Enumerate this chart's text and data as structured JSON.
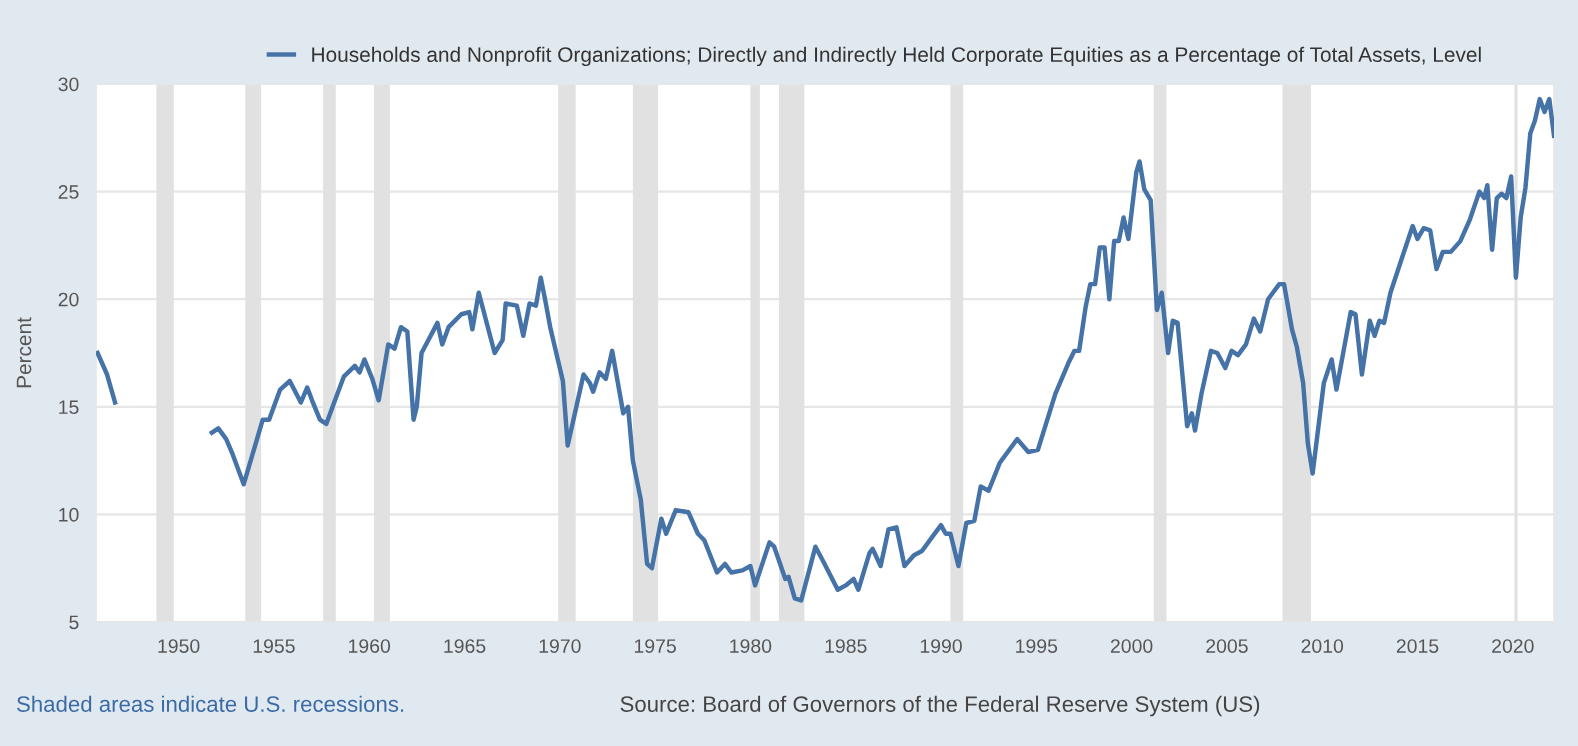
{
  "chart_data": {
    "type": "line",
    "ylabel": "Percent",
    "annotations": [
      "Shaded areas indicate U.S. recessions.",
      "Source: Board of Governors of the Federal Reserve System (US)"
    ],
    "xlim": [
      "1945-09",
      "2022-03"
    ],
    "ylim": [
      5,
      30
    ],
    "xticks": [
      "1950",
      "1955",
      "1960",
      "1965",
      "1970",
      "1975",
      "1980",
      "1985",
      "1990",
      "1995",
      "2000",
      "2005",
      "2010",
      "2015",
      "2020"
    ],
    "yticks": [
      5,
      10,
      15,
      20,
      25,
      30
    ],
    "grid": "y",
    "legend": "top left",
    "marker": "none",
    "line_style": "solid",
    "bands": [
      {
        "axis": "x",
        "from": "1948-11",
        "to": "1949-10",
        "color": "#e1e1e1"
      },
      {
        "axis": "x",
        "from": "1953-07",
        "to": "1954-05",
        "color": "#e1e1e1"
      },
      {
        "axis": "x",
        "from": "1957-08",
        "to": "1958-04",
        "color": "#e1e1e1"
      },
      {
        "axis": "x",
        "from": "1960-04",
        "to": "1961-02",
        "color": "#e1e1e1"
      },
      {
        "axis": "x",
        "from": "1969-12",
        "to": "1970-11",
        "color": "#e1e1e1"
      },
      {
        "axis": "x",
        "from": "1973-11",
        "to": "1975-03",
        "color": "#e1e1e1"
      },
      {
        "axis": "x",
        "from": "1980-01",
        "to": "1980-07",
        "color": "#e1e1e1"
      },
      {
        "axis": "x",
        "from": "1981-07",
        "to": "1982-11",
        "color": "#e1e1e1"
      },
      {
        "axis": "x",
        "from": "1990-07",
        "to": "1991-03",
        "color": "#e1e1e1"
      },
      {
        "axis": "x",
        "from": "2001-03",
        "to": "2001-11",
        "color": "#e1e1e1"
      },
      {
        "axis": "x",
        "from": "2007-12",
        "to": "2009-06",
        "color": "#e1e1e1"
      },
      {
        "axis": "x",
        "from": "2020-02",
        "to": "2020-04",
        "color": "#e1e1e1"
      }
    ],
    "x": [
      "1945-10",
      "1946-04",
      "1946-09",
      "1949-01",
      "1951-10",
      "1952-02",
      "1952-07",
      "1952-11",
      "1953-06",
      "1954-06",
      "1954-10",
      "1955-05",
      "1955-11",
      "1956-06",
      "1956-10",
      "1957-01",
      "1957-06",
      "1957-10",
      "1958-03",
      "1958-09",
      "1959-04",
      "1959-07",
      "1959-10",
      "1960-03",
      "1960-07",
      "1961-01",
      "1961-05",
      "1961-09",
      "1962-01",
      "1962-05",
      "1962-07",
      "1962-10",
      "1963-08",
      "1963-11",
      "1964-03",
      "1964-11",
      "1965-04",
      "1965-06",
      "1965-10",
      "1966-08",
      "1967-01",
      "1967-03",
      "1967-10",
      "1968-02",
      "1968-06",
      "1968-10",
      "1969-01",
      "1969-04",
      "1969-07",
      "1970-03",
      "1970-06",
      "1971-04",
      "1971-08",
      "1971-10",
      "1972-02",
      "1972-06",
      "1972-10",
      "1973-05",
      "1973-08",
      "1973-11",
      "1974-04",
      "1974-08",
      "1974-11",
      "1975-05",
      "1975-08",
      "1976-02",
      "1976-10",
      "1977-04",
      "1977-08",
      "1978-04",
      "1978-09",
      "1979-01",
      "1979-08",
      "1980-01",
      "1980-04",
      "1981-01",
      "1981-04",
      "1981-11",
      "1982-01",
      "1982-05",
      "1982-09",
      "1983-06",
      "1983-11",
      "1984-08",
      "1985-01",
      "1985-06",
      "1985-09",
      "1986-04",
      "1986-06",
      "1986-11",
      "1987-04",
      "1987-09",
      "1988-02",
      "1988-08",
      "1989-01",
      "1989-08",
      "1990-01",
      "1990-04",
      "1990-07",
      "1990-12",
      "1991-05",
      "1991-10",
      "1992-02",
      "1992-07",
      "1993-02",
      "1994-01",
      "1994-08",
      "1995-02",
      "1996-01",
      "1996-09",
      "1997-01",
      "1997-04",
      "1997-08",
      "1997-11",
      "1998-02",
      "1998-05",
      "1998-08",
      "1998-11",
      "1999-02",
      "1999-05",
      "1999-08",
      "1999-11",
      "2000-04",
      "2000-06",
      "2000-09",
      "2001-01",
      "2001-05",
      "2001-08",
      "2001-12",
      "2002-03",
      "2002-06",
      "2002-12",
      "2003-03",
      "2003-05",
      "2003-09",
      "2004-03",
      "2004-07",
      "2004-12",
      "2005-04",
      "2005-08",
      "2006-01",
      "2006-06",
      "2006-10",
      "2007-03",
      "2007-10",
      "2008-01",
      "2008-06",
      "2008-09",
      "2009-01",
      "2009-04",
      "2009-07",
      "2010-02",
      "2010-07",
      "2010-10",
      "2011-07",
      "2011-10",
      "2012-02",
      "2012-07",
      "2012-10",
      "2013-01",
      "2013-04",
      "2013-08",
      "2014-05",
      "2014-10",
      "2015-01",
      "2015-05",
      "2015-09",
      "2016-01",
      "2016-05",
      "2016-10",
      "2017-04",
      "2017-10",
      "2018-04",
      "2018-07",
      "2018-09",
      "2018-12",
      "2019-03",
      "2019-06",
      "2019-09",
      "2019-12",
      "2020-03",
      "2020-06",
      "2020-09",
      "2020-12",
      "2021-03",
      "2021-06",
      "2021-09",
      "2021-12",
      "2022-03"
    ],
    "series": [
      {
        "name": "Households and Nonprofit Organizations; Directly and Indirectly Held Corporate Equities as a Percentage of Total Assets, Level",
        "color": "#4572a7",
        "values": [
          17.5,
          16.5,
          15.2,
          null,
          13.8,
          14.0,
          13.5,
          12.8,
          11.4,
          14.4,
          14.4,
          15.8,
          16.2,
          15.2,
          15.9,
          15.3,
          14.4,
          14.2,
          15.2,
          16.4,
          16.9,
          16.6,
          17.2,
          16.3,
          15.3,
          17.9,
          17.7,
          18.7,
          18.5,
          14.4,
          15.0,
          17.5,
          18.9,
          17.9,
          18.7,
          19.3,
          19.4,
          18.6,
          20.3,
          17.5,
          18.1,
          19.8,
          19.7,
          18.3,
          19.8,
          19.7,
          21.0,
          19.9,
          18.7,
          16.2,
          13.2,
          16.5,
          16.1,
          15.7,
          16.6,
          16.3,
          17.6,
          14.7,
          15.0,
          12.5,
          10.7,
          7.7,
          7.5,
          9.8,
          9.1,
          10.2,
          10.1,
          9.1,
          8.8,
          7.3,
          7.7,
          7.3,
          7.4,
          7.6,
          6.7,
          8.7,
          8.5,
          7.0,
          7.1,
          6.1,
          6.0,
          8.5,
          7.8,
          6.5,
          6.7,
          7.0,
          6.5,
          8.2,
          8.4,
          7.6,
          9.3,
          9.4,
          7.6,
          8.1,
          8.3,
          9.0,
          9.5,
          9.1,
          9.1,
          7.6,
          9.6,
          9.7,
          11.3,
          11.1,
          12.4,
          13.5,
          12.9,
          13.0,
          15.6,
          17.0,
          17.6,
          17.6,
          19.6,
          20.7,
          20.7,
          22.4,
          22.4,
          20.0,
          22.7,
          22.7,
          23.8,
          22.8,
          25.9,
          26.4,
          25.1,
          24.6,
          19.5,
          20.3,
          17.5,
          19.0,
          18.9,
          14.1,
          14.7,
          13.9,
          15.6,
          17.6,
          17.5,
          16.8,
          17.6,
          17.4,
          17.9,
          19.1,
          18.5,
          20.0,
          20.7,
          20.7,
          18.6,
          17.8,
          16.1,
          13.3,
          11.9,
          16.1,
          17.2,
          15.8,
          19.4,
          19.3,
          16.5,
          19.0,
          18.3,
          19.0,
          18.9,
          20.3,
          22.3,
          23.4,
          22.8,
          23.3,
          23.2,
          21.4,
          22.2,
          22.2,
          22.7,
          23.7,
          25.0,
          24.7,
          25.3,
          22.3,
          24.7,
          24.9,
          24.7,
          25.7,
          21.0,
          23.8,
          25.2,
          27.7,
          28.3,
          29.3,
          28.7,
          29.3,
          27.6
        ]
      }
    ]
  }
}
